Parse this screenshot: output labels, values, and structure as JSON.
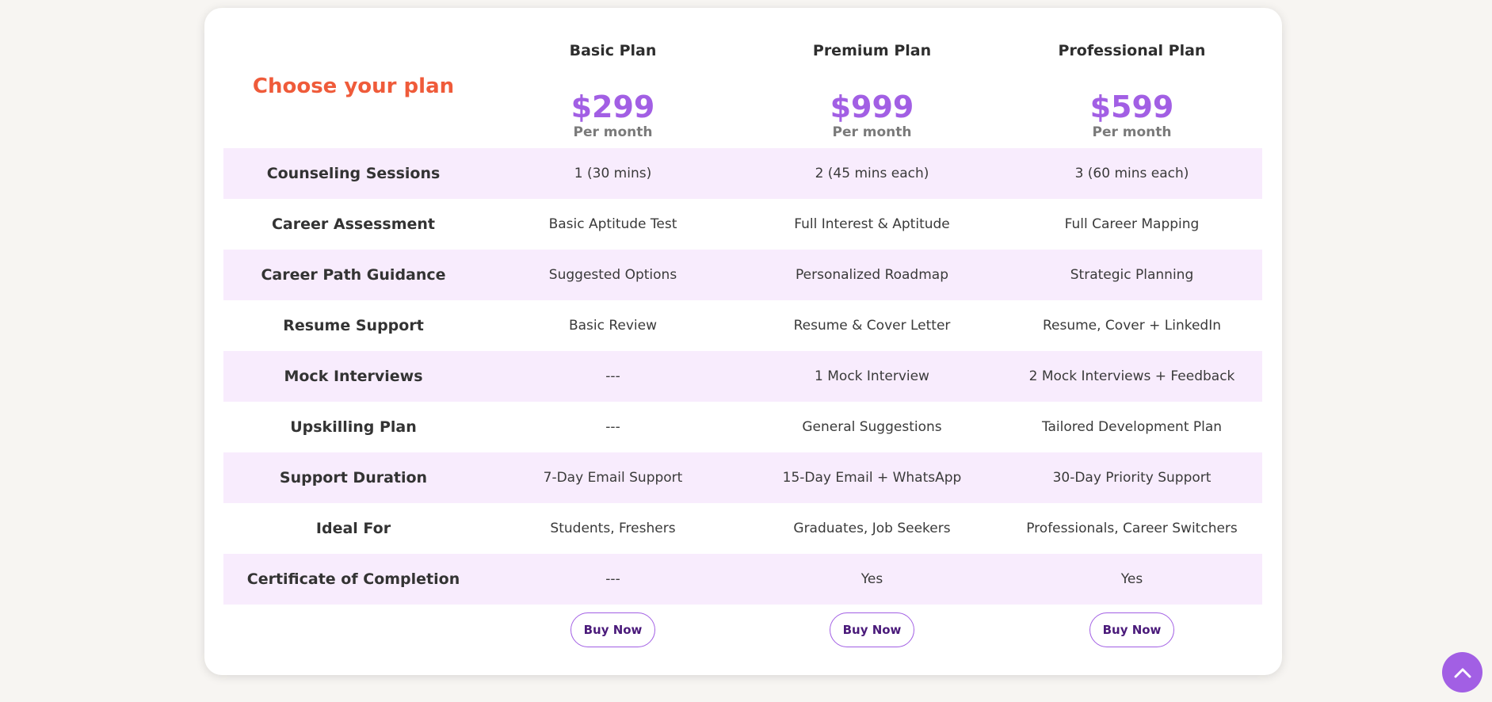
{
  "pricing": {
    "title": "Choose your plan",
    "plans": [
      {
        "name": "Basic Plan",
        "price": "$299",
        "period": "Per month",
        "button": "Buy Now"
      },
      {
        "name": "Premium Plan",
        "price": "$999",
        "period": "Per month",
        "button": "Buy Now"
      },
      {
        "name": "Professional Plan",
        "price": "$599",
        "period": "Per month",
        "button": "Buy Now"
      }
    ],
    "features": [
      {
        "label": "Counseling Sessions",
        "values": [
          "1 (30 mins)",
          "2 (45 mins each)",
          "3 (60 mins each)"
        ]
      },
      {
        "label": "Career Assessment",
        "values": [
          "Basic Aptitude Test",
          "Full Interest & Aptitude",
          "Full Career Mapping"
        ]
      },
      {
        "label": "Career Path Guidance",
        "values": [
          "Suggested Options",
          "Personalized Roadmap",
          "Strategic Planning"
        ]
      },
      {
        "label": "Resume Support",
        "values": [
          "Basic Review",
          "Resume & Cover Letter",
          "Resume, Cover + LinkedIn"
        ]
      },
      {
        "label": "Mock Interviews",
        "values": [
          "---",
          "1 Mock Interview",
          "2 Mock Interviews + Feedback"
        ]
      },
      {
        "label": "Upskilling Plan",
        "values": [
          "---",
          "General Suggestions",
          "Tailored Development Plan"
        ]
      },
      {
        "label": "Support Duration",
        "values": [
          "7-Day Email Support",
          "15-Day Email + WhatsApp",
          "30-Day Priority Support"
        ]
      },
      {
        "label": "Ideal For",
        "values": [
          "Students, Freshers",
          "Graduates, Job Seekers",
          "Professionals, Career Switchers"
        ]
      },
      {
        "label": "Certificate of Completion",
        "values": [
          "---",
          "Yes",
          "Yes"
        ]
      }
    ]
  },
  "scroll_top": {
    "icon": "chevron-up-icon"
  },
  "colors": {
    "accent": "#a25fe4",
    "title": "#ef5b3a",
    "row_shade": "#f8ecfd",
    "background": "#f7f5f2"
  }
}
